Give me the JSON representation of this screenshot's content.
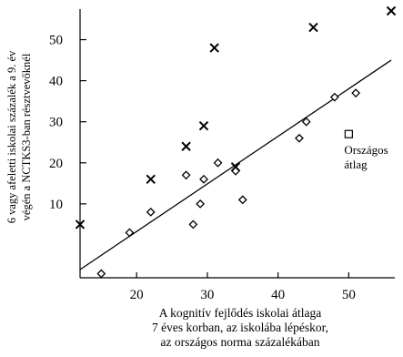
{
  "chart_data": {
    "type": "scatter",
    "title": "",
    "xlabel": [
      "A kognitív fejlődés iskolai átlaga",
      "7 éves korban, az iskolába lépéskor,",
      "az országos norma százalékában"
    ],
    "ylabel": [
      "6 vagy afeletti iskolai százalék a 9. év",
      "végén a NCTKS3-ban résztvevőknél"
    ],
    "xlim": [
      12,
      56
    ],
    "ylim": [
      -8,
      57
    ],
    "xticks": [
      20,
      30,
      40,
      50
    ],
    "yticks": [
      10,
      20,
      30,
      40,
      50
    ],
    "grid": false,
    "series": [
      {
        "marker": "x",
        "points": [
          {
            "x": 12,
            "y": 5
          },
          {
            "x": 22,
            "y": 16
          },
          {
            "x": 27,
            "y": 24
          },
          {
            "x": 29.5,
            "y": 29
          },
          {
            "x": 31,
            "y": 48
          },
          {
            "x": 34,
            "y": 19
          },
          {
            "x": 45,
            "y": 53
          },
          {
            "x": 56,
            "y": 57
          }
        ]
      },
      {
        "marker": "diamond",
        "points": [
          {
            "x": 15,
            "y": -7
          },
          {
            "x": 19,
            "y": 3
          },
          {
            "x": 22,
            "y": 8
          },
          {
            "x": 27,
            "y": 17
          },
          {
            "x": 28,
            "y": 5
          },
          {
            "x": 29,
            "y": 10
          },
          {
            "x": 29.5,
            "y": 16
          },
          {
            "x": 31.5,
            "y": 20
          },
          {
            "x": 34,
            "y": 18
          },
          {
            "x": 35,
            "y": 11
          },
          {
            "x": 43,
            "y": 26
          },
          {
            "x": 44,
            "y": 30
          },
          {
            "x": 48,
            "y": 36
          },
          {
            "x": 51,
            "y": 37
          }
        ]
      }
    ],
    "trend_line": {
      "x": [
        12,
        56
      ],
      "y": [
        -6,
        45
      ]
    },
    "annotation": {
      "marker": "square",
      "x": 50,
      "y": 27,
      "lines": [
        "Országos",
        "átlag"
      ]
    }
  }
}
